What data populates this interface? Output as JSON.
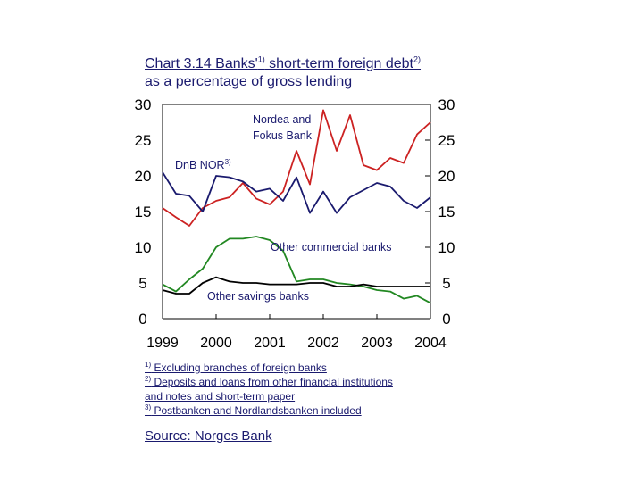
{
  "title": {
    "part1": "Chart 3.14 Banks'",
    "sup1": "1)",
    "part2": " short-term foreign debt",
    "sup2": "2)",
    "part3": " as a percentage of gross lending"
  },
  "notes": [
    {
      "marker": "1)",
      "text": " Excluding branches of  foreign banks"
    },
    {
      "marker": "2)",
      "text": " Deposits and loans from other financial institutions"
    },
    {
      "marker": "",
      "text": "and notes and short-term paper"
    },
    {
      "marker": "3)",
      "text": " Postbanken and Nordlandsbanken included"
    }
  ],
  "source": "Source: Norges Bank",
  "chart_data": {
    "type": "line",
    "xlim": [
      1999,
      2004
    ],
    "ylim": [
      0,
      30
    ],
    "x_ticks": [
      "1999",
      "2000",
      "2001",
      "2002",
      "2003",
      "2004"
    ],
    "y_ticks_left": [
      "0",
      "5",
      "10",
      "15",
      "20",
      "25",
      "30"
    ],
    "y_ticks_right": [
      "0",
      "5",
      "10",
      "15",
      "20",
      "25",
      "30"
    ],
    "grid": false,
    "series": [
      {
        "name": "Nordea and Fokus Bank",
        "color": "#cc2222",
        "x": [
          1999.0,
          1999.25,
          1999.5,
          1999.75,
          2000.0,
          2000.25,
          2000.5,
          2000.75,
          2001.0,
          2001.25,
          2001.5,
          2001.75,
          2002.0,
          2002.25,
          2002.5,
          2002.75,
          2003.0,
          2003.25,
          2003.5,
          2003.75,
          2004.0
        ],
        "y": [
          15.5,
          14.2,
          13.0,
          15.5,
          16.5,
          17.0,
          19.0,
          16.8,
          16.0,
          17.8,
          23.5,
          18.8,
          29.2,
          23.5,
          28.5,
          21.5,
          20.8,
          22.5,
          21.8,
          25.8,
          27.5
        ]
      },
      {
        "name": "DnB NOR",
        "label_sup": "3)",
        "color": "#1a1a6e",
        "x": [
          1999.0,
          1999.25,
          1999.5,
          1999.75,
          2000.0,
          2000.25,
          2000.5,
          2000.75,
          2001.0,
          2001.25,
          2001.5,
          2001.75,
          2002.0,
          2002.25,
          2002.5,
          2002.75,
          2003.0,
          2003.25,
          2003.5,
          2003.75,
          2004.0
        ],
        "y": [
          20.5,
          17.5,
          17.2,
          15.0,
          20.0,
          19.8,
          19.2,
          17.8,
          18.2,
          16.5,
          19.8,
          14.8,
          17.8,
          14.8,
          17.0,
          18.0,
          19.0,
          18.5,
          16.5,
          15.5,
          17.0
        ]
      },
      {
        "name": "Other commercial banks",
        "color": "#228822",
        "x": [
          1999.0,
          1999.25,
          1999.5,
          1999.75,
          2000.0,
          2000.25,
          2000.5,
          2000.75,
          2001.0,
          2001.25,
          2001.5,
          2001.75,
          2002.0,
          2002.25,
          2002.5,
          2002.75,
          2003.0,
          2003.25,
          2003.5,
          2003.75,
          2004.0
        ],
        "y": [
          4.8,
          3.8,
          5.5,
          7.0,
          10.0,
          11.2,
          11.2,
          11.5,
          11.0,
          9.5,
          5.2,
          5.5,
          5.5,
          5.0,
          4.8,
          4.5,
          4.0,
          3.8,
          2.8,
          3.2,
          2.2
        ]
      },
      {
        "name": "Other savings banks",
        "color": "#000000",
        "x": [
          1999.0,
          1999.25,
          1999.5,
          1999.75,
          2000.0,
          2000.25,
          2000.5,
          2000.75,
          2001.0,
          2001.25,
          2001.5,
          2001.75,
          2002.0,
          2002.25,
          2002.5,
          2002.75,
          2003.0,
          2003.25,
          2003.5,
          2003.75,
          2004.0
        ],
        "y": [
          4.0,
          3.5,
          3.5,
          5.0,
          5.8,
          5.2,
          5.0,
          5.0,
          4.8,
          4.8,
          4.8,
          5.0,
          5.0,
          4.5,
          4.5,
          4.8,
          4.5,
          4.5,
          4.5,
          4.5,
          4.5
        ]
      }
    ],
    "annotations": [
      {
        "text": "Nordea and",
        "series": 0
      },
      {
        "text": "Fokus Bank",
        "series": 0
      },
      {
        "text": "DnB NOR",
        "sup": "3)",
        "series": 1
      },
      {
        "text": "Other commercial banks",
        "series": 2
      },
      {
        "text": "Other savings banks",
        "series": 3
      }
    ]
  }
}
